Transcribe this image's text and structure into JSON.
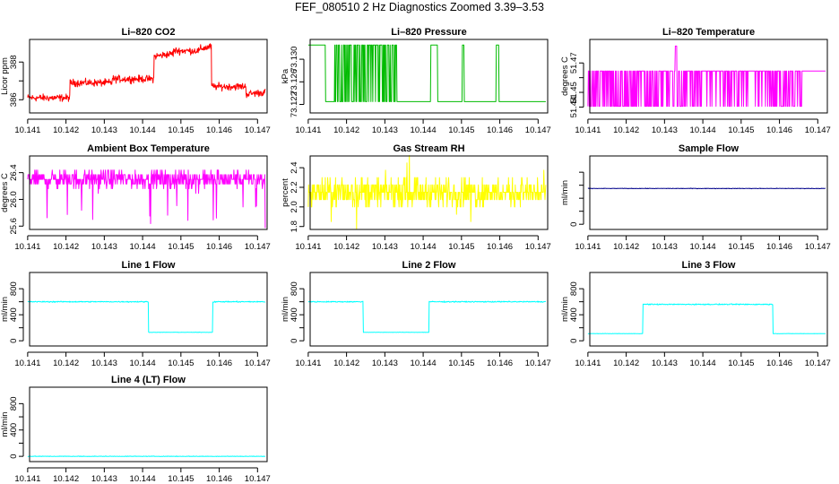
{
  "suptitle": "FEF_080510  2 Hz Diagnostics Zoomed 3.39–3.53",
  "chart_data": [
    {
      "type": "line",
      "title": "Li–820 CO2",
      "ylabel": "Licor ppm",
      "color": "#ff0000",
      "x_range": [
        10.141,
        10.1472
      ],
      "x_ticks": [
        "10.141",
        "10.142",
        "10.143",
        "10.144",
        "10.145",
        "10.146",
        "10.147"
      ],
      "ylim": [
        385.3,
        389.2
      ],
      "y_ticks": [
        386,
        387,
        388
      ],
      "y_tick_labels": [
        "386",
        "",
        "388"
      ],
      "gen": "co2",
      "series": [
        {
          "name": "CO2",
          "approx_levels": [
            {
              "x0": 10.141,
              "x1": 10.1421,
              "y": 386.1
            },
            {
              "x0": 10.1421,
              "x1": 10.1432,
              "y": 386.9
            },
            {
              "x0": 10.1432,
              "x1": 10.1443,
              "y": 387.1
            },
            {
              "x0": 10.1443,
              "x1": 10.1458,
              "y": 388.6
            },
            {
              "x0": 10.1458,
              "x1": 10.1472,
              "y": 386.7
            }
          ]
        }
      ]
    },
    {
      "type": "line",
      "title": "Li–820 Pressure",
      "ylabel": "kPa",
      "color": "#00bb00",
      "x_range": [
        10.141,
        10.1472
      ],
      "x_ticks": [
        "10.141",
        "10.142",
        "10.143",
        "10.144",
        "10.145",
        "10.146",
        "10.147"
      ],
      "ylim": [
        73.1205,
        73.1335
      ],
      "y_ticks": [
        73.122,
        73.126,
        73.13
      ],
      "y_tick_labels": [
        "73.122",
        "73.126",
        "73.130"
      ],
      "gen": "pressure",
      "series": [
        {
          "name": "Pressure",
          "levels": [
            73.1225,
            73.1325
          ]
        }
      ]
    },
    {
      "type": "line",
      "title": "Li–820 Temperature",
      "ylabel": "degrees C",
      "color": "#ff00ff",
      "x_range": [
        10.141,
        10.1472
      ],
      "x_ticks": [
        "10.141",
        "10.142",
        "10.143",
        "10.144",
        "10.145",
        "10.146",
        "10.147"
      ],
      "ylim": [
        51.436,
        51.486
      ],
      "y_ticks": [
        51.44,
        51.45,
        51.46,
        51.47
      ],
      "y_tick_labels": [
        "51.44",
        "51.45",
        "",
        "51.47"
      ],
      "gen": "ltemp",
      "series": [
        {
          "name": "Temperature",
          "levels": [
            51.4405,
            51.4645
          ],
          "spike": {
            "x": 10.1433,
            "y": 51.4815
          }
        }
      ]
    },
    {
      "type": "line",
      "title": "Ambient Box Temperature",
      "ylabel": "degrees C",
      "color": "#ff00ff",
      "x_range": [
        10.141,
        10.1472
      ],
      "x_ticks": [
        "10.141",
        "10.142",
        "10.143",
        "10.144",
        "10.145",
        "10.146",
        "10.147"
      ],
      "ylim": [
        25.55,
        26.65
      ],
      "y_ticks": [
        25.6,
        26.0,
        26.4
      ],
      "y_tick_labels": [
        "25.6",
        "26.0",
        "26.4"
      ],
      "gen": "abt",
      "series": [
        {
          "name": "Box Temp",
          "approx_mean": 26.3
        }
      ]
    },
    {
      "type": "line",
      "title": "Gas Stream RH",
      "ylabel": "percent",
      "color": "#ffff00",
      "x_range": [
        10.141,
        10.1472
      ],
      "x_ticks": [
        "10.141",
        "10.142",
        "10.143",
        "10.144",
        "10.145",
        "10.146",
        "10.147"
      ],
      "ylim": [
        1.77,
        2.52
      ],
      "y_ticks": [
        1.8,
        2.0,
        2.2,
        2.4
      ],
      "y_tick_labels": [
        "1.8",
        "2.0",
        "2.2",
        "2.4"
      ],
      "gen": "rh",
      "series": [
        {
          "name": "RH",
          "approx_mean": 2.15
        }
      ]
    },
    {
      "type": "line",
      "title": "Sample Flow",
      "ylabel": "ml/min",
      "color": "#00008b",
      "x_range": [
        10.141,
        10.1472
      ],
      "x_ticks": [
        "10.141",
        "10.142",
        "10.143",
        "10.144",
        "10.145",
        "10.146",
        "10.147"
      ],
      "ylim": [
        -80,
        1050
      ],
      "y_ticks": [
        0,
        200,
        400,
        600,
        800
      ],
      "y_tick_labels": [
        "0",
        "",
        "",
        "",
        ""
      ],
      "gen": "flat",
      "series": [
        {
          "name": "Sample Flow",
          "approx_value": 550
        }
      ]
    },
    {
      "type": "line",
      "title": "Line 1 Flow",
      "ylabel": "ml/min",
      "color": "#00ffff",
      "x_range": [
        10.141,
        10.1472
      ],
      "x_ticks": [
        "10.141",
        "10.142",
        "10.143",
        "10.144",
        "10.145",
        "10.146",
        "10.147"
      ],
      "ylim": [
        -80,
        1050
      ],
      "y_ticks": [
        0,
        200,
        400,
        600,
        800
      ],
      "y_tick_labels": [
        "0",
        "",
        "400",
        "",
        "800"
      ],
      "gen": "steps",
      "series": [
        {
          "name": "Line 1",
          "steps": [
            {
              "x0": 10.141,
              "x1": 10.14415,
              "y": 600
            },
            {
              "x0": 10.14415,
              "x1": 10.14583,
              "y": 130
            },
            {
              "x0": 10.14583,
              "x1": 10.1472,
              "y": 600
            }
          ]
        }
      ]
    },
    {
      "type": "line",
      "title": "Line 2 Flow",
      "ylabel": "ml/min",
      "color": "#00ffff",
      "x_range": [
        10.141,
        10.1472
      ],
      "x_ticks": [
        "10.141",
        "10.142",
        "10.143",
        "10.144",
        "10.145",
        "10.146",
        "10.147"
      ],
      "ylim": [
        -80,
        1050
      ],
      "y_ticks": [
        0,
        200,
        400,
        600,
        800
      ],
      "y_tick_labels": [
        "0",
        "",
        "400",
        "",
        "800"
      ],
      "gen": "steps",
      "series": [
        {
          "name": "Line 2",
          "steps": [
            {
              "x0": 10.141,
              "x1": 10.14243,
              "y": 600
            },
            {
              "x0": 10.14243,
              "x1": 10.14415,
              "y": 130
            },
            {
              "x0": 10.14415,
              "x1": 10.1472,
              "y": 600
            }
          ]
        }
      ]
    },
    {
      "type": "line",
      "title": "Line 3 Flow",
      "ylabel": "ml/min",
      "color": "#00ffff",
      "x_range": [
        10.141,
        10.1472
      ],
      "x_ticks": [
        "10.141",
        "10.142",
        "10.143",
        "10.144",
        "10.145",
        "10.146",
        "10.147"
      ],
      "ylim": [
        -80,
        1050
      ],
      "y_ticks": [
        0,
        200,
        400,
        600,
        800
      ],
      "y_tick_labels": [
        "0",
        "",
        "400",
        "",
        "800"
      ],
      "gen": "steps",
      "series": [
        {
          "name": "Line 3",
          "steps": [
            {
              "x0": 10.141,
              "x1": 10.14243,
              "y": 110
            },
            {
              "x0": 10.14243,
              "x1": 10.14583,
              "y": 560
            },
            {
              "x0": 10.14583,
              "x1": 10.1472,
              "y": 110
            }
          ]
        }
      ]
    },
    {
      "type": "line",
      "title": "Line 4 (LT) Flow",
      "ylabel": "ml/min",
      "color": "#00ffff",
      "x_range": [
        10.141,
        10.1472
      ],
      "x_ticks": [
        "10.141",
        "10.142",
        "10.143",
        "10.144",
        "10.145",
        "10.146",
        "10.147"
      ],
      "ylim": [
        -80,
        1050
      ],
      "y_ticks": [
        0,
        200,
        400,
        600,
        800
      ],
      "y_tick_labels": [
        "0",
        "",
        "400",
        "",
        "800"
      ],
      "gen": "flat",
      "series": [
        {
          "name": "Line 4",
          "approx_value": 0
        }
      ]
    }
  ]
}
